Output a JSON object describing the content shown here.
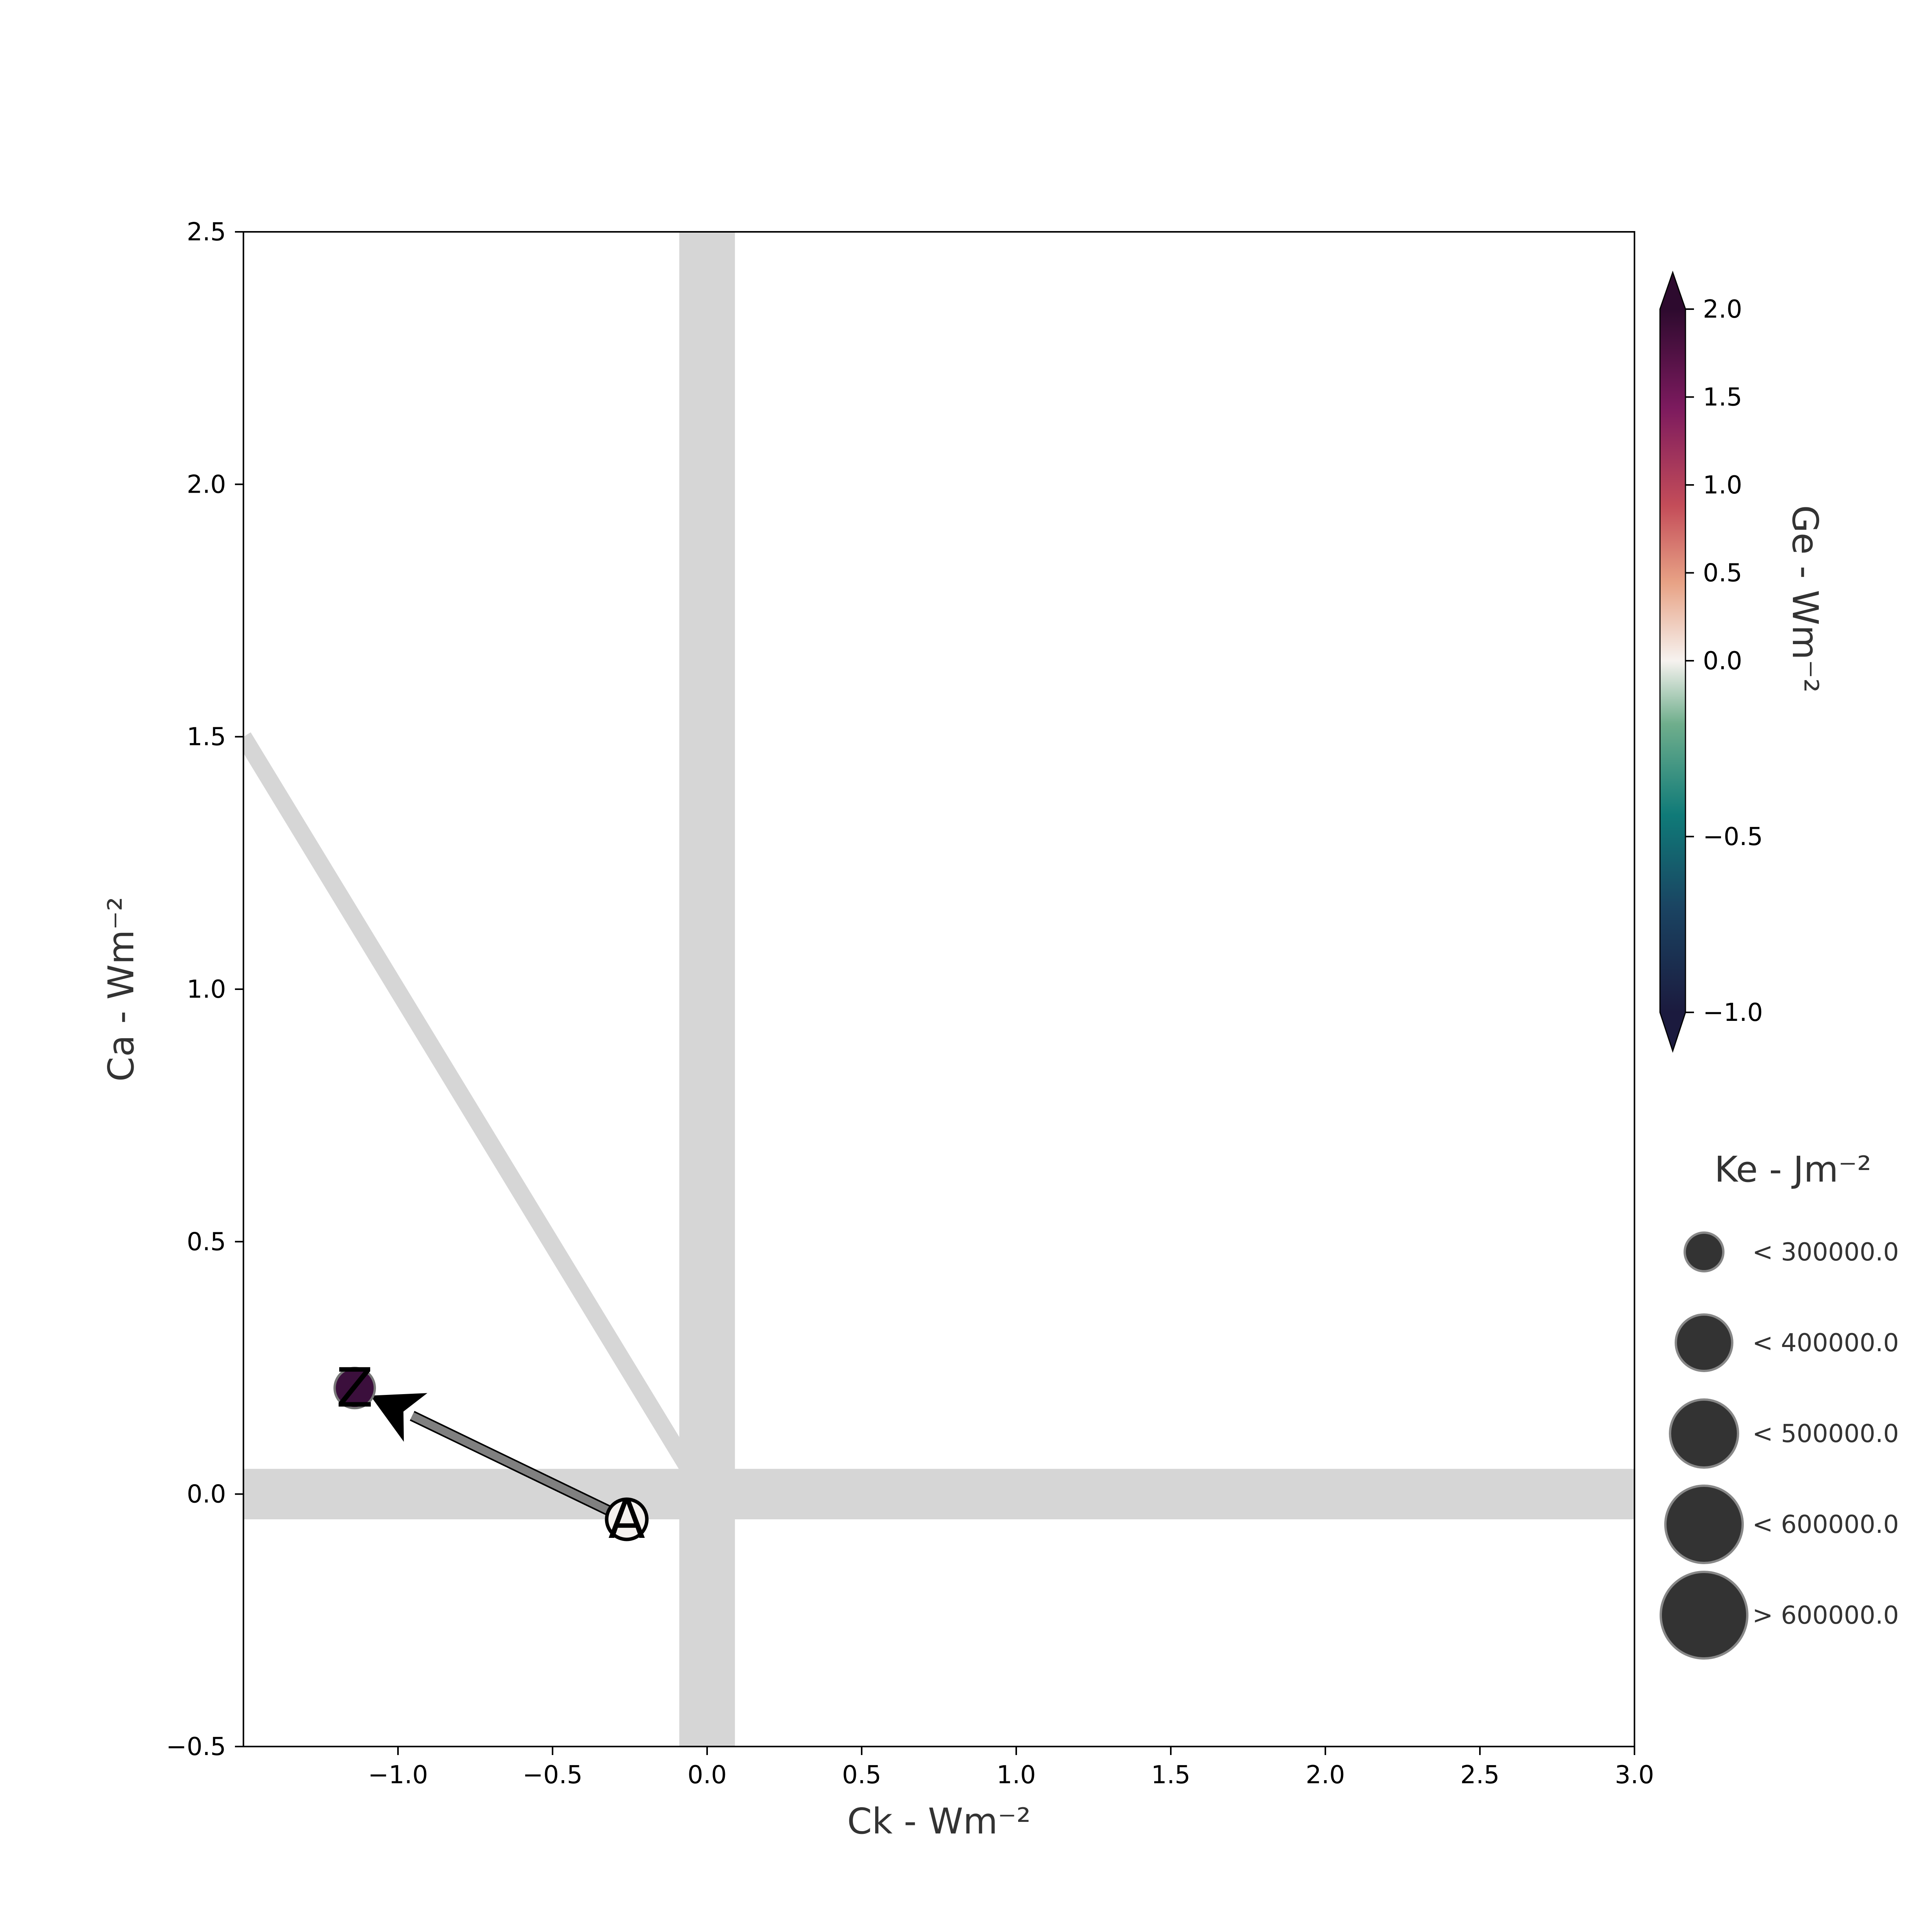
{
  "chart_data": {
    "type": "scatter",
    "xlabel": "Ck -  Wm⁻²",
    "ylabel": "Ca -  Wm⁻²",
    "xlim": [
      -1.5,
      3.0
    ],
    "ylim": [
      -0.5,
      2.5
    ],
    "x_ticks": [
      -1.0,
      -0.5,
      0.0,
      0.5,
      1.0,
      1.5,
      2.0,
      2.5,
      3.0
    ],
    "x_tick_labels": [
      "−1.0",
      "−0.5",
      "0.0",
      "0.5",
      "1.0",
      "1.5",
      "2.0",
      "2.5",
      "3.0"
    ],
    "y_ticks": [
      -0.5,
      0.0,
      0.5,
      1.0,
      1.5,
      2.0,
      2.5
    ],
    "y_tick_labels": [
      "−0.5",
      "0.0",
      "0.5",
      "1.0",
      "1.5",
      "2.0",
      "2.5"
    ],
    "grid": false,
    "reference_bands": {
      "vertical_x": 0.0,
      "vertical_halfwidth": 0.09,
      "horizontal_y": 0.0,
      "horizontal_halfwidth": 0.05,
      "diagonal": [
        [
          -1.5,
          1.5
        ],
        [
          0.0,
          -0.01
        ]
      ],
      "color": "#d6d6d6"
    },
    "points": [
      {
        "label": "A",
        "x": -0.26,
        "y": -0.05,
        "ge": 0.0,
        "color": "#f4f1ee"
      },
      {
        "label": "Z",
        "x": -1.14,
        "y": 0.21,
        "ge": 2.0,
        "color": "#3b0f3c"
      }
    ],
    "trajectory": {
      "from": "A",
      "to": "Z",
      "color": "#808080"
    },
    "colorbar": {
      "label": "Ge -  Wm⁻²",
      "min": -1.0,
      "max": 2.0,
      "ticks": [
        -1.0,
        -0.5,
        0.0,
        0.5,
        1.0,
        1.5,
        2.0
      ],
      "tick_labels": [
        "−1.0",
        "−0.5",
        "0.0",
        "0.5",
        "1.0",
        "1.5",
        "2.0"
      ],
      "extend": "both",
      "colors": [
        "#1b1a3e",
        "#1a4462",
        "#0f7a78",
        "#6fae8c",
        "#f6f2ef",
        "#e8a386",
        "#c44d59",
        "#7c1a5e",
        "#2d0a2e"
      ]
    },
    "size_legend": {
      "title": "Ke -  Jm⁻²",
      "placement": "right",
      "color": "#333333",
      "entries": [
        {
          "label": "< 300000.0",
          "level": 1
        },
        {
          "label": "< 400000.0",
          "level": 2
        },
        {
          "label": "< 500000.0",
          "level": 3
        },
        {
          "label": "< 600000.0",
          "level": 4
        },
        {
          "label": "> 600000.0",
          "level": 5
        }
      ]
    }
  }
}
